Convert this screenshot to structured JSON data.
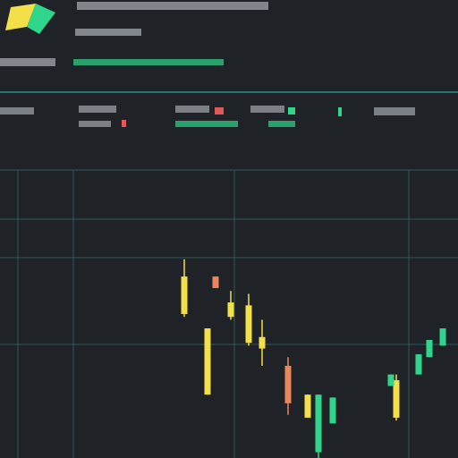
{
  "chart_data": {
    "type": "candlestick",
    "categories": [
      null,
      null,
      null,
      null,
      null,
      null,
      null,
      null,
      null,
      null,
      null,
      null,
      null,
      null,
      null
    ],
    "open": [
      63,
      63,
      45,
      54,
      53,
      42,
      32,
      22,
      22,
      21,
      27,
      29,
      36,
      41,
      45
    ],
    "close": [
      50,
      59,
      22,
      49,
      40,
      38,
      19,
      14,
      2,
      12,
      14,
      25,
      29,
      35,
      39
    ],
    "high": [
      69,
      63,
      45,
      58,
      57,
      48,
      35,
      22,
      22,
      21,
      29,
      29,
      36,
      41,
      45
    ],
    "low": [
      49,
      59,
      22,
      48,
      39,
      32,
      15,
      14,
      0,
      12,
      13,
      25,
      29,
      35,
      39
    ],
    "colors": [
      "#f3df48",
      "#e9865a",
      "#f3df48",
      "#f3df48",
      "#f3df48",
      "#f3df48",
      "#e9865a",
      "#f3df48",
      "#2fd58a",
      "#2fd58a",
      "#f3df48",
      "#2fd58a",
      "#2fd58a",
      "#2fd58a",
      "#2fd58a"
    ],
    "ylim": [
      0,
      100
    ]
  }
}
